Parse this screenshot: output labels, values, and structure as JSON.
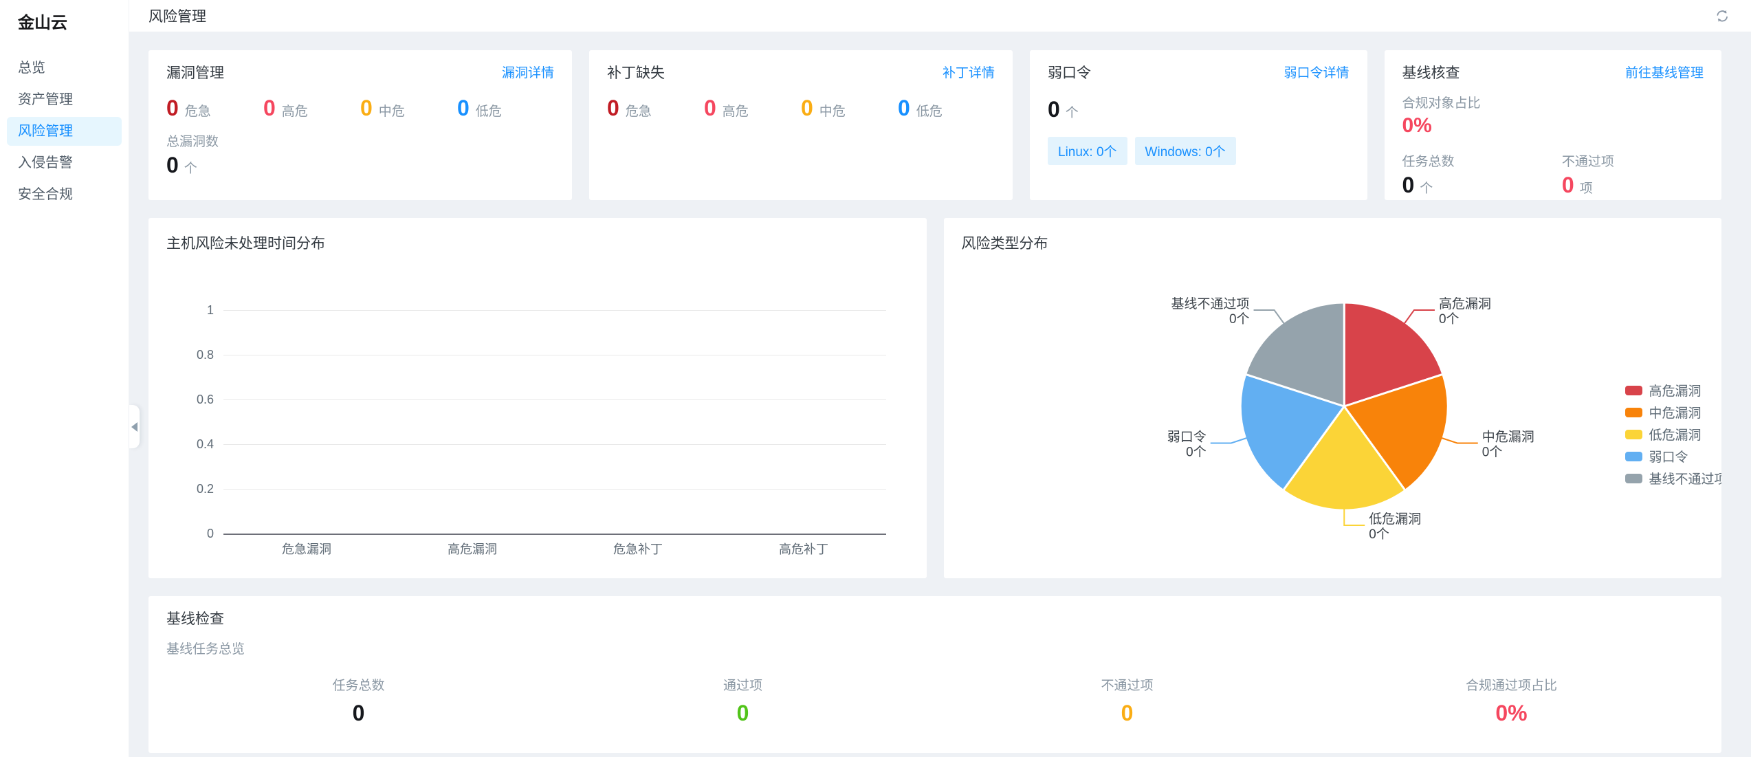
{
  "app": {
    "logo": "金山云"
  },
  "sidebar": {
    "items": [
      {
        "label": "总览",
        "active": false
      },
      {
        "label": "资产管理",
        "active": false
      },
      {
        "label": "风险管理",
        "active": true
      },
      {
        "label": "入侵告警",
        "active": false
      },
      {
        "label": "安全合规",
        "active": false
      }
    ]
  },
  "header": {
    "title": "风险管理",
    "refresh_icon": "sync-refresh"
  },
  "cards": {
    "vuln": {
      "title": "漏洞管理",
      "link": "漏洞详情",
      "stats": [
        {
          "value": "0",
          "label": "危急",
          "color": "#c11c24"
        },
        {
          "value": "0",
          "label": "高危",
          "color": "#f5475f"
        },
        {
          "value": "0",
          "label": "中危",
          "color": "#faad14"
        },
        {
          "value": "0",
          "label": "低危",
          "color": "#1890ff"
        }
      ],
      "total_label": "总漏洞数",
      "total_value": "0",
      "total_unit": "个"
    },
    "patch": {
      "title": "补丁缺失",
      "link": "补丁详情",
      "stats": [
        {
          "value": "0",
          "label": "危急",
          "color": "#c11c24"
        },
        {
          "value": "0",
          "label": "高危",
          "color": "#f5475f"
        },
        {
          "value": "0",
          "label": "中危",
          "color": "#faad14"
        },
        {
          "value": "0",
          "label": "低危",
          "color": "#1890ff"
        }
      ]
    },
    "weak": {
      "title": "弱口令",
      "link": "弱口令详情",
      "value": "0",
      "unit": "个",
      "tags": [
        "Linux: 0个",
        "Windows: 0个"
      ]
    },
    "basecheck": {
      "title": "基线核查",
      "link": "前往基线管理",
      "ratio_label": "合规对象占比",
      "ratio_value": "0%",
      "columns": [
        {
          "label": "任务总数",
          "value": "0",
          "unit": "个",
          "color": "#16181d"
        },
        {
          "label": "不通过项",
          "value": "0",
          "unit": "项",
          "color": "#f5475f"
        }
      ]
    }
  },
  "chart_data": [
    {
      "type": "bar",
      "title": "主机风险未处理时间分布",
      "categories": [
        "危急漏洞",
        "高危漏洞",
        "危急补丁",
        "高危补丁"
      ],
      "values": [
        0,
        0,
        0,
        0
      ],
      "xlabel": "",
      "ylabel": "",
      "ylim": [
        0,
        1
      ],
      "yticks": [
        0,
        0.2,
        0.4,
        0.6,
        0.8,
        1
      ],
      "grid": true,
      "bar_color": "#1890ff"
    },
    {
      "type": "pie",
      "title": "风险类型分布",
      "unit": "个",
      "legend_position": "right",
      "series": [
        {
          "name": "高危漏洞",
          "value": 0,
          "color": "#d8434a"
        },
        {
          "name": "中危漏洞",
          "value": 0,
          "color": "#f8830a"
        },
        {
          "name": "低危漏洞",
          "value": 0,
          "color": "#fbd437"
        },
        {
          "name": "弱口令",
          "value": 0,
          "color": "#62aff2"
        },
        {
          "name": "基线不通过项",
          "value": 0,
          "color": "#95a3ac"
        }
      ]
    }
  ],
  "bottom": {
    "title": "基线检查",
    "subtitle": "基线任务总览",
    "stats": [
      {
        "label": "任务总数",
        "value": "0",
        "color": "#16181d"
      },
      {
        "label": "通过项",
        "value": "0",
        "color": "#52c41a"
      },
      {
        "label": "不通过项",
        "value": "0",
        "color": "#faad14"
      },
      {
        "label": "合规通过项占比",
        "value": "0%",
        "color": "#f5475f"
      }
    ]
  }
}
